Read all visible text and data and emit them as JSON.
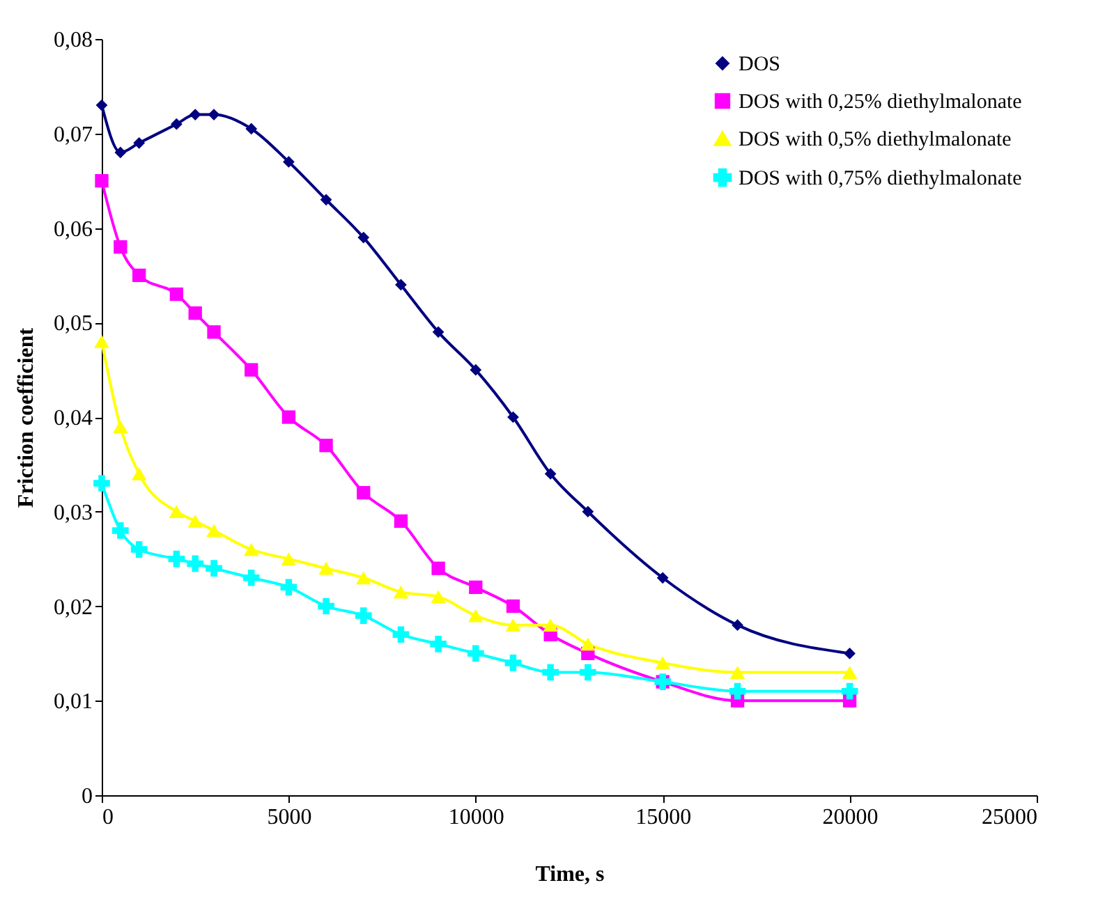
{
  "chart_data": {
    "type": "line",
    "xlabel": "Time, s",
    "ylabel": "Friction coefficient",
    "x": [
      0,
      500,
      1000,
      2000,
      2500,
      3000,
      4000,
      5000,
      6000,
      7000,
      8000,
      9000,
      10000,
      11000,
      12000,
      13000,
      15000,
      17000,
      20000
    ],
    "series": [
      {
        "name": "DOS",
        "color": "#000080",
        "marker": "diamond",
        "values": [
          0.073,
          0.068,
          0.069,
          0.071,
          0.072,
          0.072,
          0.0705,
          0.067,
          0.063,
          0.059,
          0.054,
          0.049,
          0.045,
          0.04,
          0.034,
          0.03,
          0.023,
          0.018,
          0.015
        ]
      },
      {
        "name": "DOS with 0,25% diethylmalonate",
        "color": "#ff00ff",
        "marker": "square",
        "values": [
          0.065,
          0.058,
          0.055,
          0.053,
          0.051,
          0.049,
          0.045,
          0.04,
          0.037,
          0.032,
          0.029,
          0.024,
          0.022,
          0.02,
          0.017,
          0.015,
          0.012,
          0.01,
          0.01
        ]
      },
      {
        "name": "DOS with 0,5% diethylmalonate",
        "color": "#ffff00",
        "marker": "triangle",
        "values": [
          0.048,
          0.039,
          0.034,
          0.03,
          0.029,
          0.028,
          0.026,
          0.025,
          0.024,
          0.023,
          0.0215,
          0.021,
          0.019,
          0.018,
          0.018,
          0.016,
          0.014,
          0.013,
          0.013
        ]
      },
      {
        "name": "DOS with 0,75% diethylmalonate",
        "color": "#00ffff",
        "marker": "cross",
        "values": [
          0.033,
          0.028,
          0.026,
          0.025,
          0.0245,
          0.024,
          0.023,
          0.022,
          0.02,
          0.019,
          0.017,
          0.016,
          0.015,
          0.014,
          0.013,
          0.013,
          0.012,
          0.011,
          0.011
        ]
      }
    ],
    "xlim": [
      0,
      25000
    ],
    "xticks": [
      0,
      5000,
      10000,
      15000,
      20000,
      25000
    ],
    "ylim": [
      0,
      0.08
    ],
    "yticks": [
      0,
      {
        "value": 0.01,
        "label": "0,01"
      },
      {
        "value": 0.02,
        "label": "0,02"
      },
      {
        "value": 0.03,
        "label": "0,03"
      },
      {
        "value": 0.04,
        "label": "0,04"
      },
      {
        "value": 0.05,
        "label": "0,05"
      },
      {
        "value": 0.06,
        "label": "0,06"
      },
      {
        "value": 0.07,
        "label": "0,07"
      },
      {
        "value": 0.08,
        "label": "0,08"
      }
    ],
    "legend": "top right",
    "grid": false
  }
}
